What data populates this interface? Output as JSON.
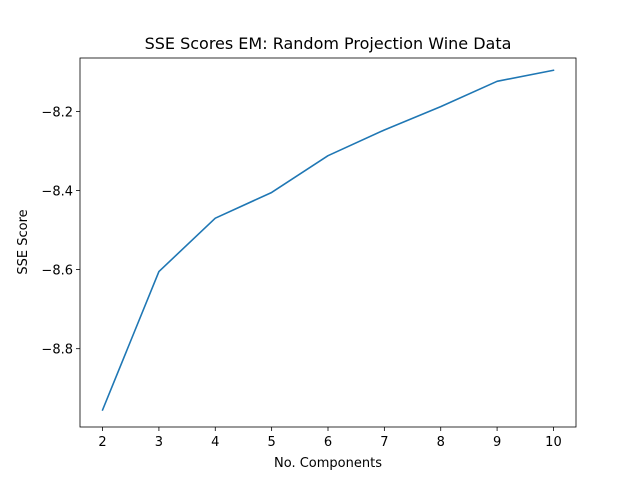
{
  "chart_data": {
    "type": "line",
    "title": "SSE Scores EM: Random Projection Wine Data",
    "xlabel": "No. Components",
    "ylabel": "SSE Score",
    "x": [
      2,
      3,
      4,
      5,
      6,
      7,
      8,
      9,
      10
    ],
    "series": [
      {
        "name": "SSE Score",
        "color": "#1f77b4",
        "values": [
          -8.955,
          -8.605,
          -8.47,
          -8.405,
          -8.312,
          -8.247,
          -8.188,
          -8.124,
          -8.096
        ]
      }
    ],
    "xlim": [
      1.6,
      10.4
    ],
    "ylim": [
      -8.998,
      -8.065
    ],
    "xticks": [
      2,
      3,
      4,
      5,
      6,
      7,
      8,
      9,
      10
    ],
    "yticks": [
      -8.8,
      -8.6,
      -8.4,
      -8.2
    ],
    "ytick_labels": [
      "−8.8",
      "−8.6",
      "−8.4",
      "−8.2"
    ],
    "grid": false,
    "legend": false
  }
}
